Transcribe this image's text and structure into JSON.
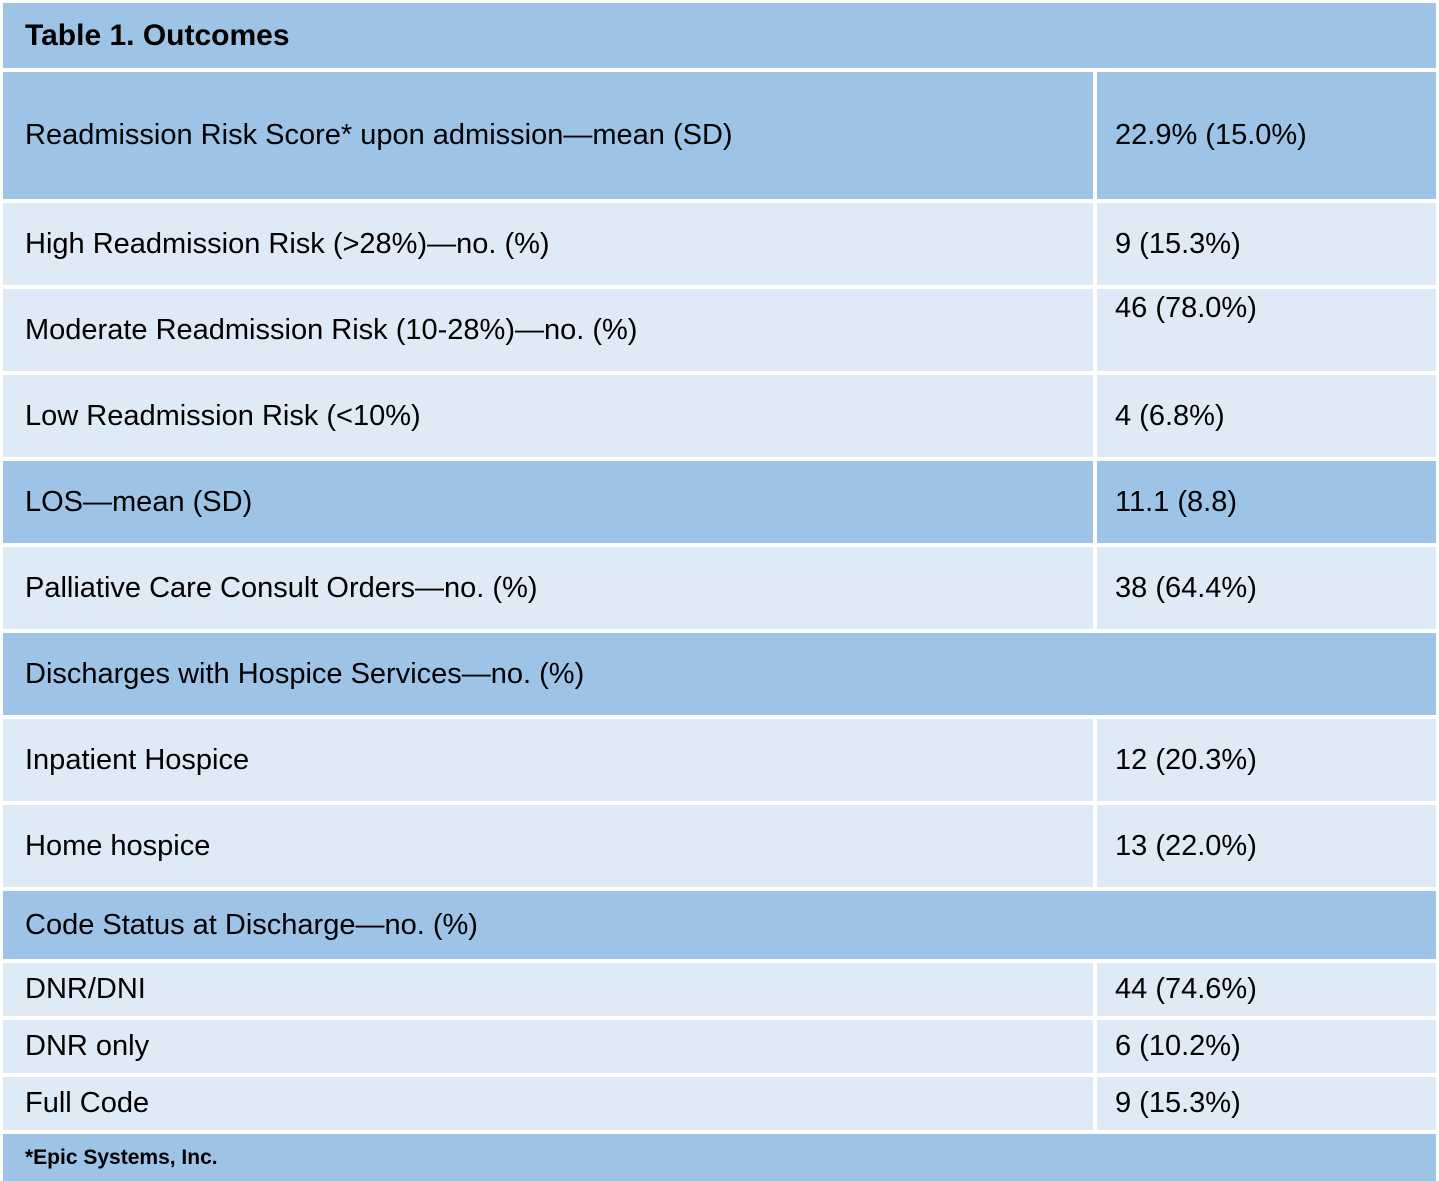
{
  "title": "Table 1. Outcomes",
  "footnote": "*Epic Systems, Inc.",
  "colors": {
    "header_blue": "#9DC3E6",
    "light_blue": "#DEEAF6",
    "gridline_white": "#FFFFFF",
    "text": "#000000"
  },
  "rows": [
    {
      "label": "Readmission Risk Score* upon admission—mean (SD)",
      "value": "22.9% (15.0%)",
      "shade": "medium",
      "span": false
    },
    {
      "label": "High Readmission Risk (>28%)—no. (%)",
      "value": "9 (15.3%)",
      "shade": "light",
      "span": false
    },
    {
      "label": "Moderate Readmission Risk (10-28%)—no. (%)",
      "value": "46 (78.0%)",
      "shade": "light",
      "span": false
    },
    {
      "label": "Low Readmission Risk (<10%)",
      "value": "4 (6.8%)",
      "shade": "light",
      "span": false
    },
    {
      "label": "LOS—mean (SD)",
      "value": "11.1 (8.8)",
      "shade": "medium",
      "span": false
    },
    {
      "label": "Palliative Care Consult Orders—no. (%)",
      "value": "38 (64.4%)",
      "shade": "light",
      "span": false
    },
    {
      "label": "Discharges with Hospice Services—no. (%)",
      "value": "",
      "shade": "medium",
      "span": true
    },
    {
      "label": "Inpatient Hospice",
      "value": "12 (20.3%)",
      "shade": "light",
      "span": false
    },
    {
      "label": "Home hospice",
      "value": "13 (22.0%)",
      "shade": "light",
      "span": false
    },
    {
      "label": "Code Status at Discharge—no. (%)",
      "value": "",
      "shade": "medium",
      "span": true
    },
    {
      "label": "DNR/DNI",
      "value": "44 (74.6%)",
      "shade": "light",
      "span": false
    },
    {
      "label": "DNR only",
      "value": "6 (10.2%)",
      "shade": "light",
      "span": false
    },
    {
      "label": "Full Code",
      "value": "9 (15.3%)",
      "shade": "light",
      "span": false
    }
  ],
  "chart_data": {
    "type": "table",
    "title": "Table 1. Outcomes",
    "columns": [
      "label",
      "value"
    ],
    "rows": [
      [
        "Readmission Risk Score* upon admission—mean (SD)",
        "22.9% (15.0%)"
      ],
      [
        "High Readmission Risk (>28%)—no. (%)",
        "9 (15.3%)"
      ],
      [
        "Moderate Readmission Risk (10-28%)—no. (%)",
        "46 (78.0%)"
      ],
      [
        "Low Readmission Risk (<10%)",
        "4 (6.8%)"
      ],
      [
        "LOS—mean (SD)",
        "11.1 (8.8)"
      ],
      [
        "Palliative Care Consult Orders—no. (%)",
        "38 (64.4%)"
      ],
      [
        "Discharges with Hospice Services—no. (%)",
        ""
      ],
      [
        "Inpatient Hospice",
        "12 (20.3%)"
      ],
      [
        "Home hospice",
        "13 (22.0%)"
      ],
      [
        "Code Status at Discharge—no. (%)",
        ""
      ],
      [
        "DNR/DNI",
        "44 (74.6%)"
      ],
      [
        "DNR only",
        "6 (10.2%)"
      ],
      [
        "Full Code",
        "9 (15.3%)"
      ]
    ],
    "footnote": "*Epic Systems, Inc."
  }
}
